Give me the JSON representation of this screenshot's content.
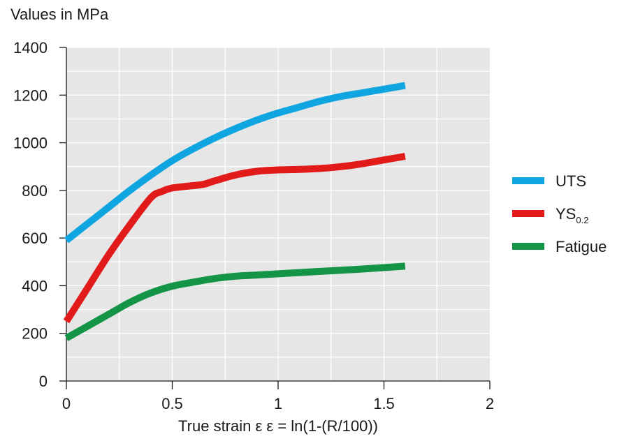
{
  "chart_data": {
    "type": "line",
    "ylabel": "Values in MPa",
    "xlabel": "True strain ε  ε = ln(1-(R/100))",
    "xlim": [
      0,
      2
    ],
    "ylim": [
      0,
      1400
    ],
    "x_ticks": [
      "0",
      "0.5",
      "1",
      "1.5",
      "2"
    ],
    "y_ticks": [
      "0",
      "200",
      "400",
      "600",
      "800",
      "1000",
      "1200",
      "1400"
    ],
    "grid": true,
    "legend_position": "right",
    "series": [
      {
        "name": "UTS",
        "color": "#0ea5e0",
        "x": [
          0,
          0.1,
          0.2,
          0.3,
          0.4,
          0.5,
          0.6,
          0.7,
          0.8,
          0.9,
          1.0,
          1.1,
          1.2,
          1.3,
          1.4,
          1.5,
          1.6
        ],
        "y": [
          590,
          660,
          730,
          800,
          865,
          925,
          975,
          1020,
          1060,
          1095,
          1125,
          1150,
          1175,
          1195,
          1210,
          1225,
          1240
        ]
      },
      {
        "name": "YS",
        "name_sub": "0.2",
        "color": "#e11a1a",
        "x": [
          0,
          0.1,
          0.2,
          0.3,
          0.4,
          0.45,
          0.5,
          0.6,
          0.65,
          0.7,
          0.8,
          0.9,
          1.0,
          1.1,
          1.2,
          1.3,
          1.4,
          1.5,
          1.6
        ],
        "y": [
          250,
          390,
          530,
          655,
          770,
          795,
          810,
          820,
          826,
          840,
          865,
          880,
          886,
          888,
          892,
          900,
          912,
          928,
          943
        ]
      },
      {
        "name": "Fatigue",
        "color": "#139446",
        "x": [
          0,
          0.1,
          0.2,
          0.3,
          0.4,
          0.5,
          0.6,
          0.7,
          0.8,
          0.9,
          1.0,
          1.1,
          1.2,
          1.3,
          1.4,
          1.5,
          1.6
        ],
        "y": [
          180,
          230,
          280,
          330,
          370,
          398,
          415,
          430,
          440,
          445,
          450,
          455,
          460,
          465,
          470,
          476,
          482
        ]
      }
    ]
  }
}
